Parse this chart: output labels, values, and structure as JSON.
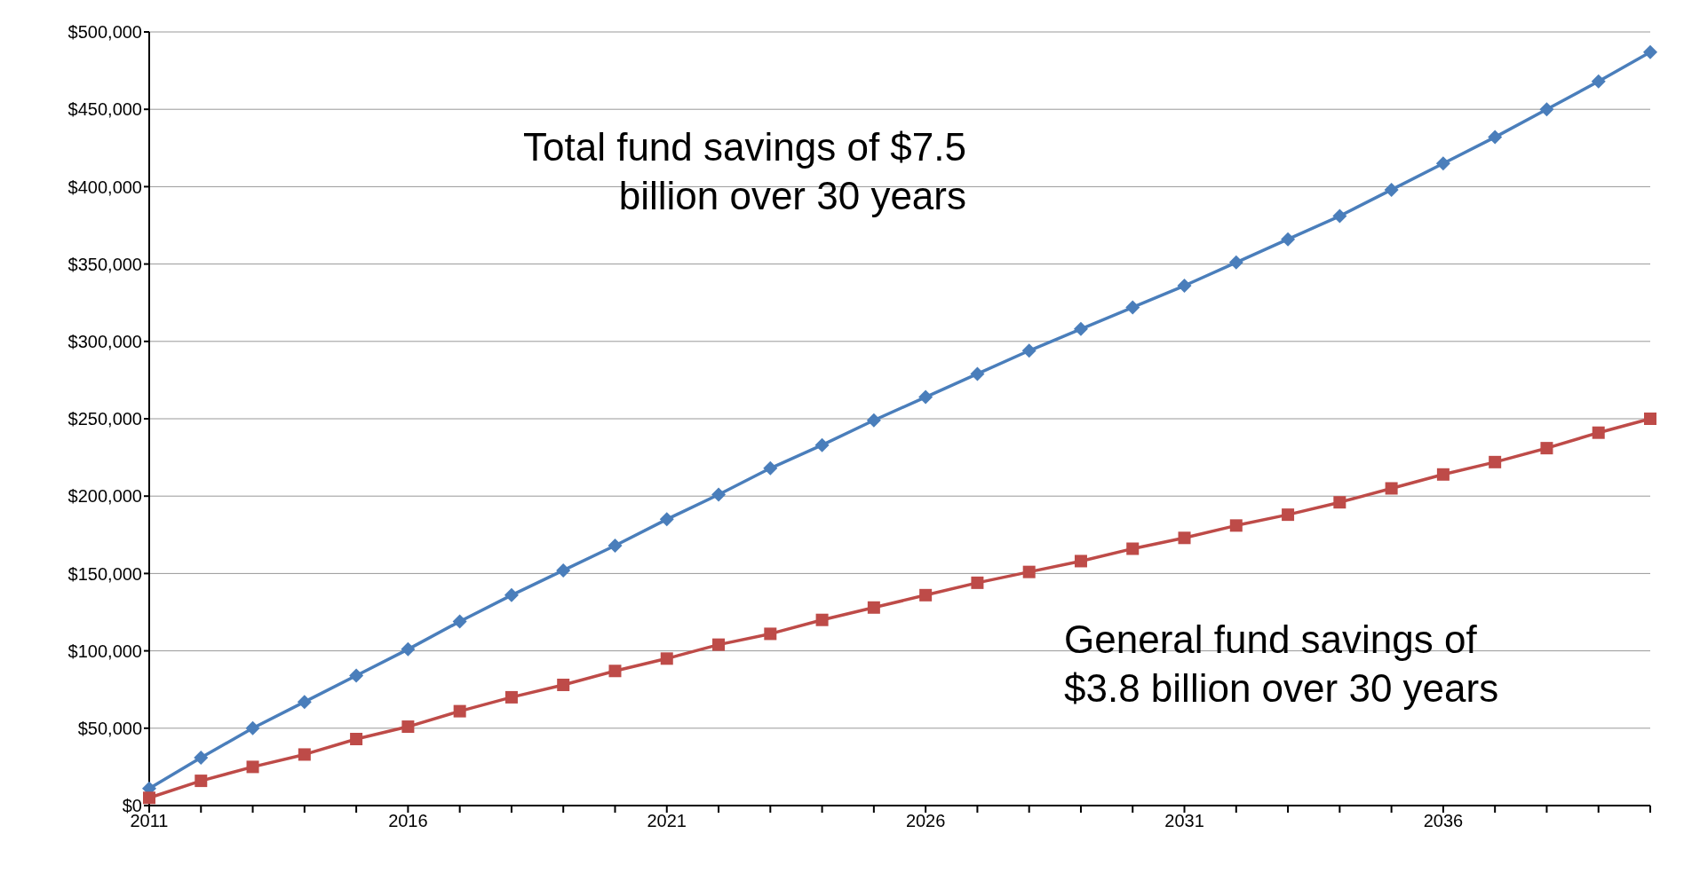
{
  "chart_data": {
    "type": "line",
    "categories": [
      "2011",
      null,
      null,
      null,
      null,
      "2016",
      null,
      null,
      null,
      null,
      "2021",
      null,
      null,
      null,
      null,
      "2026",
      null,
      null,
      null,
      null,
      "2031",
      null,
      null,
      null,
      null,
      "2036",
      null,
      null,
      null,
      null
    ],
    "series": [
      {
        "color": "#4a7ebb",
        "marker": "diamond",
        "values": [
          11000,
          31000,
          50000,
          67000,
          84000,
          101000,
          119000,
          136000,
          152000,
          168000,
          185000,
          201000,
          218000,
          233000,
          249000,
          264000,
          279000,
          294000,
          308000,
          322000,
          336000,
          351000,
          366000,
          381000,
          398000,
          415000,
          432000,
          450000,
          468000,
          487000
        ]
      },
      {
        "color": "#be4b48",
        "marker": "square",
        "values": [
          5000,
          16000,
          25000,
          33000,
          43000,
          51000,
          61000,
          70000,
          78000,
          87000,
          95000,
          104000,
          111000,
          120000,
          128000,
          136000,
          144000,
          151000,
          158000,
          166000,
          173000,
          181000,
          188000,
          196000,
          205000,
          214000,
          222000,
          231000,
          241000,
          250000
        ]
      }
    ],
    "ylim": [
      0,
      500000
    ],
    "yticks": [
      {
        "value": 0,
        "label": "$0"
      },
      {
        "value": 50000,
        "label": "$50,000"
      },
      {
        "value": 100000,
        "label": "$100,000"
      },
      {
        "value": 150000,
        "label": "$150,000"
      },
      {
        "value": 200000,
        "label": "$200,000"
      },
      {
        "value": 250000,
        "label": "$250,000"
      },
      {
        "value": 300000,
        "label": "$300,000"
      },
      {
        "value": 350000,
        "label": "$350,000"
      },
      {
        "value": 400000,
        "label": "$400,000"
      },
      {
        "value": 450000,
        "label": "$450,000"
      },
      {
        "value": 500000,
        "label": "$500,000"
      }
    ],
    "grid": "y",
    "legend": false,
    "line_style": "solid",
    "annotations": [
      "Total fund savings of $7.5 billion over 30 years",
      "General fund savings of $3.8 billion over 30 years"
    ]
  }
}
